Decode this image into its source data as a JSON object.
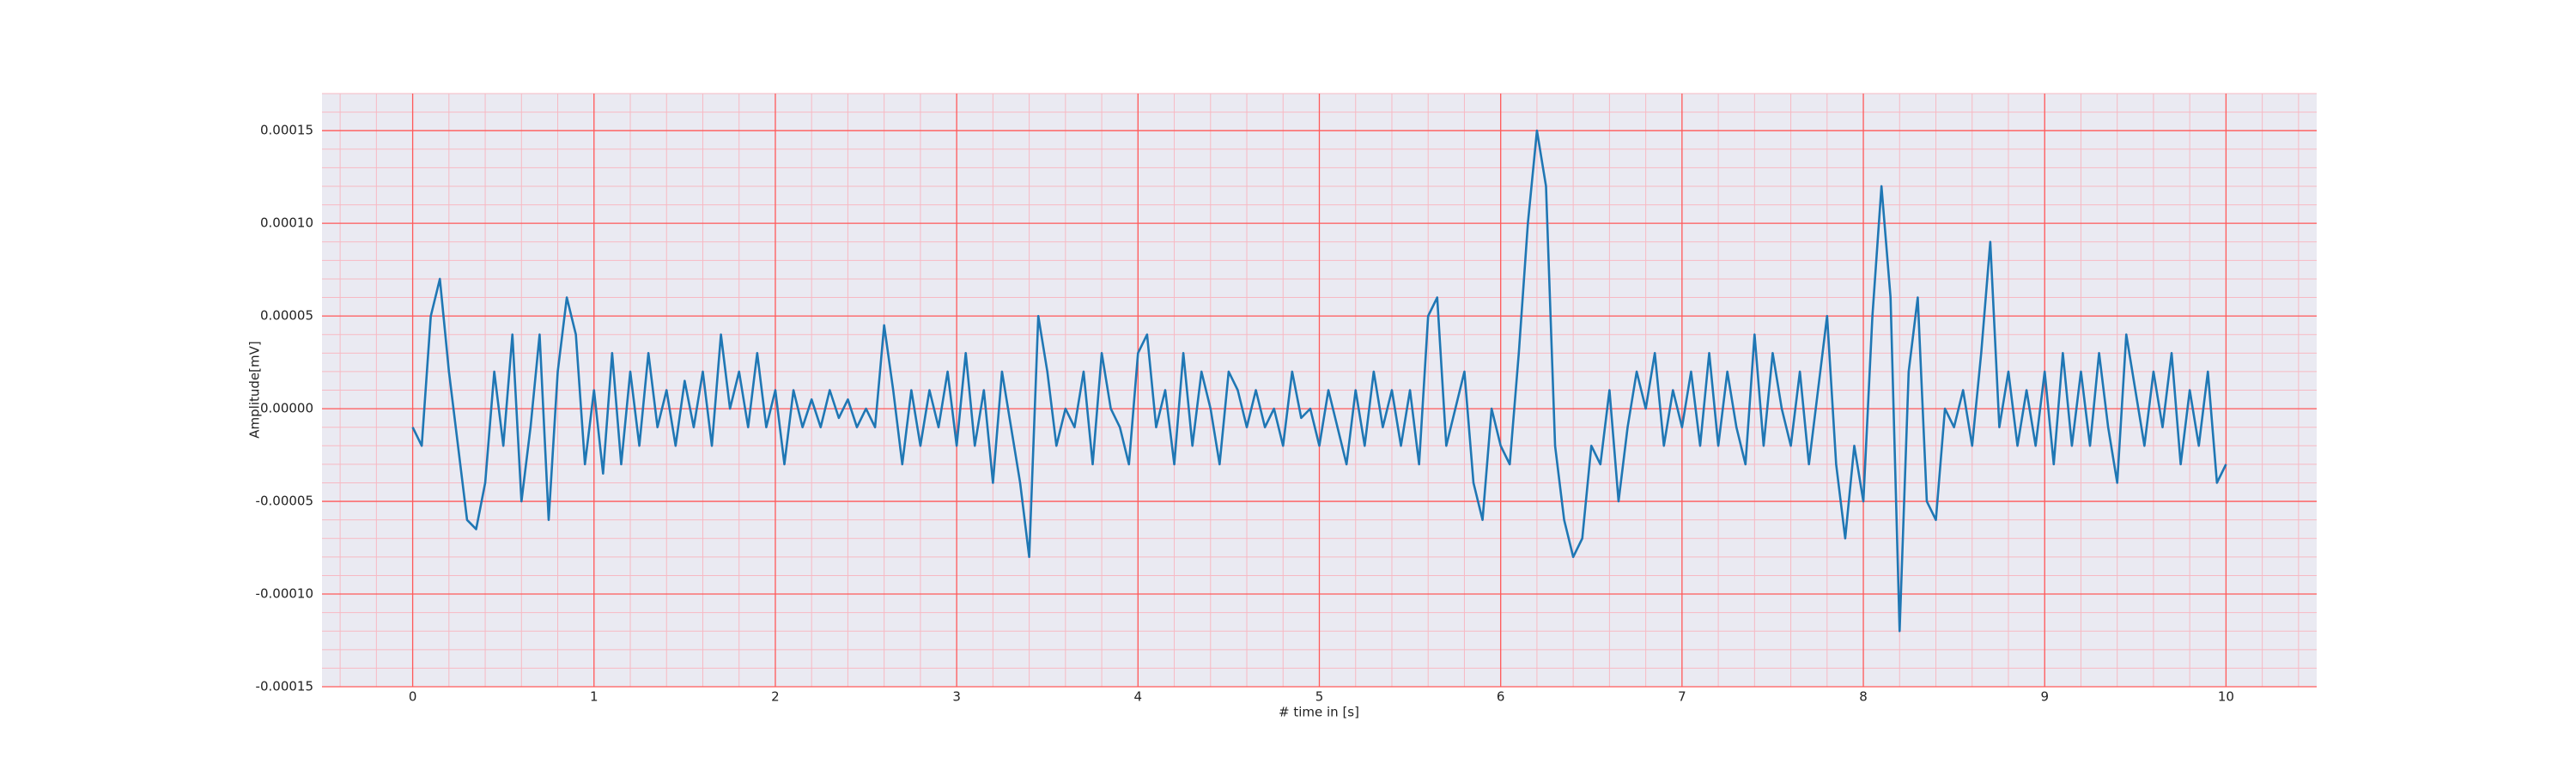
{
  "chart_data": {
    "type": "line",
    "xlabel": "# time in [s]",
    "ylabel": "Amplitude[mV]",
    "color": "#1f77b4",
    "background": "#eaeaf2",
    "grid": true,
    "grid_color": "#ff5a5a",
    "minor_grid_color": "#f7b9c3",
    "xlim": [
      -0.5,
      10.5
    ],
    "ylim": [
      -0.00015,
      0.00017
    ],
    "xticks": [
      0,
      1,
      2,
      3,
      4,
      5,
      6,
      7,
      8,
      9,
      10
    ],
    "yticks": [
      {
        "value": 0.00015,
        "label": "0.00015"
      },
      {
        "value": 0.0001,
        "label": "0.00010"
      },
      {
        "value": 5e-05,
        "label": "0.00005"
      },
      {
        "value": 0,
        "label": "0.00000"
      },
      {
        "value": -5e-05,
        "label": "-0.00005"
      },
      {
        "value": -0.0001,
        "label": "-0.00010"
      },
      {
        "value": -0.00015,
        "label": "-0.00015"
      }
    ],
    "minor_xticks": [
      -0.4,
      -0.2,
      0,
      0.2,
      0.4,
      0.6,
      0.8,
      1,
      1.2,
      1.4,
      1.6,
      1.8,
      2,
      2.2,
      2.4,
      2.6,
      2.8,
      3,
      3.2,
      3.4,
      3.6,
      3.8,
      4,
      4.2,
      4.4,
      4.6,
      4.8,
      5,
      5.2,
      5.4,
      5.6,
      5.8,
      6,
      6.2,
      6.4,
      6.6,
      6.8,
      7,
      7.2,
      7.4,
      7.6,
      7.8,
      8,
      8.2,
      8.4,
      8.6,
      8.8,
      9,
      9.2,
      9.4,
      9.6,
      9.8,
      10,
      10.2,
      10.4
    ],
    "minor_yticks": [
      -0.00015,
      -0.00014,
      -0.00013,
      -0.00012,
      -0.00011,
      -0.0001,
      -9e-05,
      -8e-05,
      -7e-05,
      -6e-05,
      -5e-05,
      -4e-05,
      -3e-05,
      -2e-05,
      -1e-05,
      0,
      1e-05,
      2e-05,
      3e-05,
      4e-05,
      5e-05,
      6e-05,
      7e-05,
      8e-05,
      9e-05,
      0.0001,
      0.00011,
      0.00012,
      0.00013,
      0.00014,
      0.00015,
      0.00016,
      0.00017
    ],
    "x": [
      0,
      0.05,
      0.1,
      0.15,
      0.2,
      0.25,
      0.3,
      0.35,
      0.4,
      0.45,
      0.5,
      0.55,
      0.6,
      0.65,
      0.7,
      0.75,
      0.8,
      0.85,
      0.9,
      0.95,
      1,
      1.05,
      1.1,
      1.15,
      1.2,
      1.25,
      1.3,
      1.35,
      1.4,
      1.45,
      1.5,
      1.55,
      1.6,
      1.65,
      1.7,
      1.75,
      1.8,
      1.85,
      1.9,
      1.95,
      2,
      2.05,
      2.1,
      2.15,
      2.2,
      2.25,
      2.3,
      2.35,
      2.4,
      2.45,
      2.5,
      2.55,
      2.6,
      2.65,
      2.7,
      2.75,
      2.8,
      2.85,
      2.9,
      2.95,
      3,
      3.05,
      3.1,
      3.15,
      3.2,
      3.25,
      3.3,
      3.35,
      3.4,
      3.45,
      3.5,
      3.55,
      3.6,
      3.65,
      3.7,
      3.75,
      3.8,
      3.85,
      3.9,
      3.95,
      4,
      4.05,
      4.1,
      4.15,
      4.2,
      4.25,
      4.3,
      4.35,
      4.4,
      4.45,
      4.5,
      4.55,
      4.6,
      4.65,
      4.7,
      4.75,
      4.8,
      4.85,
      4.9,
      4.95,
      5,
      5.05,
      5.1,
      5.15,
      5.2,
      5.25,
      5.3,
      5.35,
      5.4,
      5.45,
      5.5,
      5.55,
      5.6,
      5.65,
      5.7,
      5.75,
      5.8,
      5.85,
      5.9,
      5.95,
      6,
      6.05,
      6.1,
      6.15,
      6.2,
      6.25,
      6.3,
      6.35,
      6.4,
      6.45,
      6.5,
      6.55,
      6.6,
      6.65,
      6.7,
      6.75,
      6.8,
      6.85,
      6.9,
      6.95,
      7,
      7.05,
      7.1,
      7.15,
      7.2,
      7.25,
      7.3,
      7.35,
      7.4,
      7.45,
      7.5,
      7.55,
      7.6,
      7.65,
      7.7,
      7.75,
      7.8,
      7.85,
      7.9,
      7.95,
      8,
      8.05,
      8.1,
      8.15,
      8.2,
      8.25,
      8.3,
      8.35,
      8.4,
      8.45,
      8.5,
      8.55,
      8.6,
      8.65,
      8.7,
      8.75,
      8.8,
      8.85,
      8.9,
      8.95,
      9,
      9.05,
      9.1,
      9.15,
      9.2,
      9.25,
      9.3,
      9.35,
      9.4,
      9.45,
      9.5,
      9.55,
      9.6,
      9.65,
      9.7,
      9.75,
      9.8,
      9.85,
      9.9,
      9.95,
      10
    ],
    "values": [
      -1e-05,
      -2e-05,
      5e-05,
      7e-05,
      2e-05,
      -2e-05,
      -6e-05,
      -6.5e-05,
      -4e-05,
      2e-05,
      -2e-05,
      4e-05,
      -5e-05,
      -1e-05,
      4e-05,
      -6e-05,
      2e-05,
      6e-05,
      4e-05,
      -3e-05,
      1e-05,
      -3.5e-05,
      3e-05,
      -3e-05,
      2e-05,
      -2e-05,
      3e-05,
      -1e-05,
      1e-05,
      -2e-05,
      1.5e-05,
      -1e-05,
      2e-05,
      -2e-05,
      4e-05,
      0,
      2e-05,
      -1e-05,
      3e-05,
      -1e-05,
      1e-05,
      -3e-05,
      1e-05,
      -1e-05,
      5e-06,
      -1e-05,
      1e-05,
      -5e-06,
      5e-06,
      -1e-05,
      0,
      -1e-05,
      4.5e-05,
      1e-05,
      -3e-05,
      1e-05,
      -2e-05,
      1e-05,
      -1e-05,
      2e-05,
      -2e-05,
      3e-05,
      -2e-05,
      1e-05,
      -4e-05,
      2e-05,
      -1e-05,
      -4e-05,
      -8e-05,
      5e-05,
      2e-05,
      -2e-05,
      0,
      -1e-05,
      2e-05,
      -3e-05,
      3e-05,
      0,
      -1e-05,
      -3e-05,
      3e-05,
      4e-05,
      -1e-05,
      1e-05,
      -3e-05,
      3e-05,
      -2e-05,
      2e-05,
      0,
      -3e-05,
      2e-05,
      1e-05,
      -1e-05,
      1e-05,
      -1e-05,
      0,
      -2e-05,
      2e-05,
      -5e-06,
      0,
      -2e-05,
      1e-05,
      -1e-05,
      -3e-05,
      1e-05,
      -2e-05,
      2e-05,
      -1e-05,
      1e-05,
      -2e-05,
      1e-05,
      -3e-05,
      5e-05,
      6e-05,
      -2e-05,
      0,
      2e-05,
      -4e-05,
      -6e-05,
      0,
      -2e-05,
      -3e-05,
      3e-05,
      0.0001,
      0.00015,
      0.00012,
      -2e-05,
      -6e-05,
      -8e-05,
      -7e-05,
      -2e-05,
      -3e-05,
      1e-05,
      -5e-05,
      -1e-05,
      2e-05,
      0,
      3e-05,
      -2e-05,
      1e-05,
      -1e-05,
      2e-05,
      -2e-05,
      3e-05,
      -2e-05,
      2e-05,
      -1e-05,
      -3e-05,
      4e-05,
      -2e-05,
      3e-05,
      0,
      -2e-05,
      2e-05,
      -3e-05,
      1e-05,
      5e-05,
      -3e-05,
      -7e-05,
      -2e-05,
      -5e-05,
      5e-05,
      0.00012,
      6e-05,
      -0.00012,
      2e-05,
      6e-05,
      -5e-05,
      -6e-05,
      0,
      -1e-05,
      1e-05,
      -2e-05,
      3e-05,
      9e-05,
      -1e-05,
      2e-05,
      -2e-05,
      1e-05,
      -2e-05,
      2e-05,
      -3e-05,
      3e-05,
      -2e-05,
      2e-05,
      -2e-05,
      3e-05,
      -1e-05,
      -4e-05,
      4e-05,
      1e-05,
      -2e-05,
      2e-05,
      -1e-05,
      3e-05,
      -3e-05,
      1e-05,
      -2e-05,
      2e-05,
      -4e-05,
      -3e-05
    ]
  }
}
